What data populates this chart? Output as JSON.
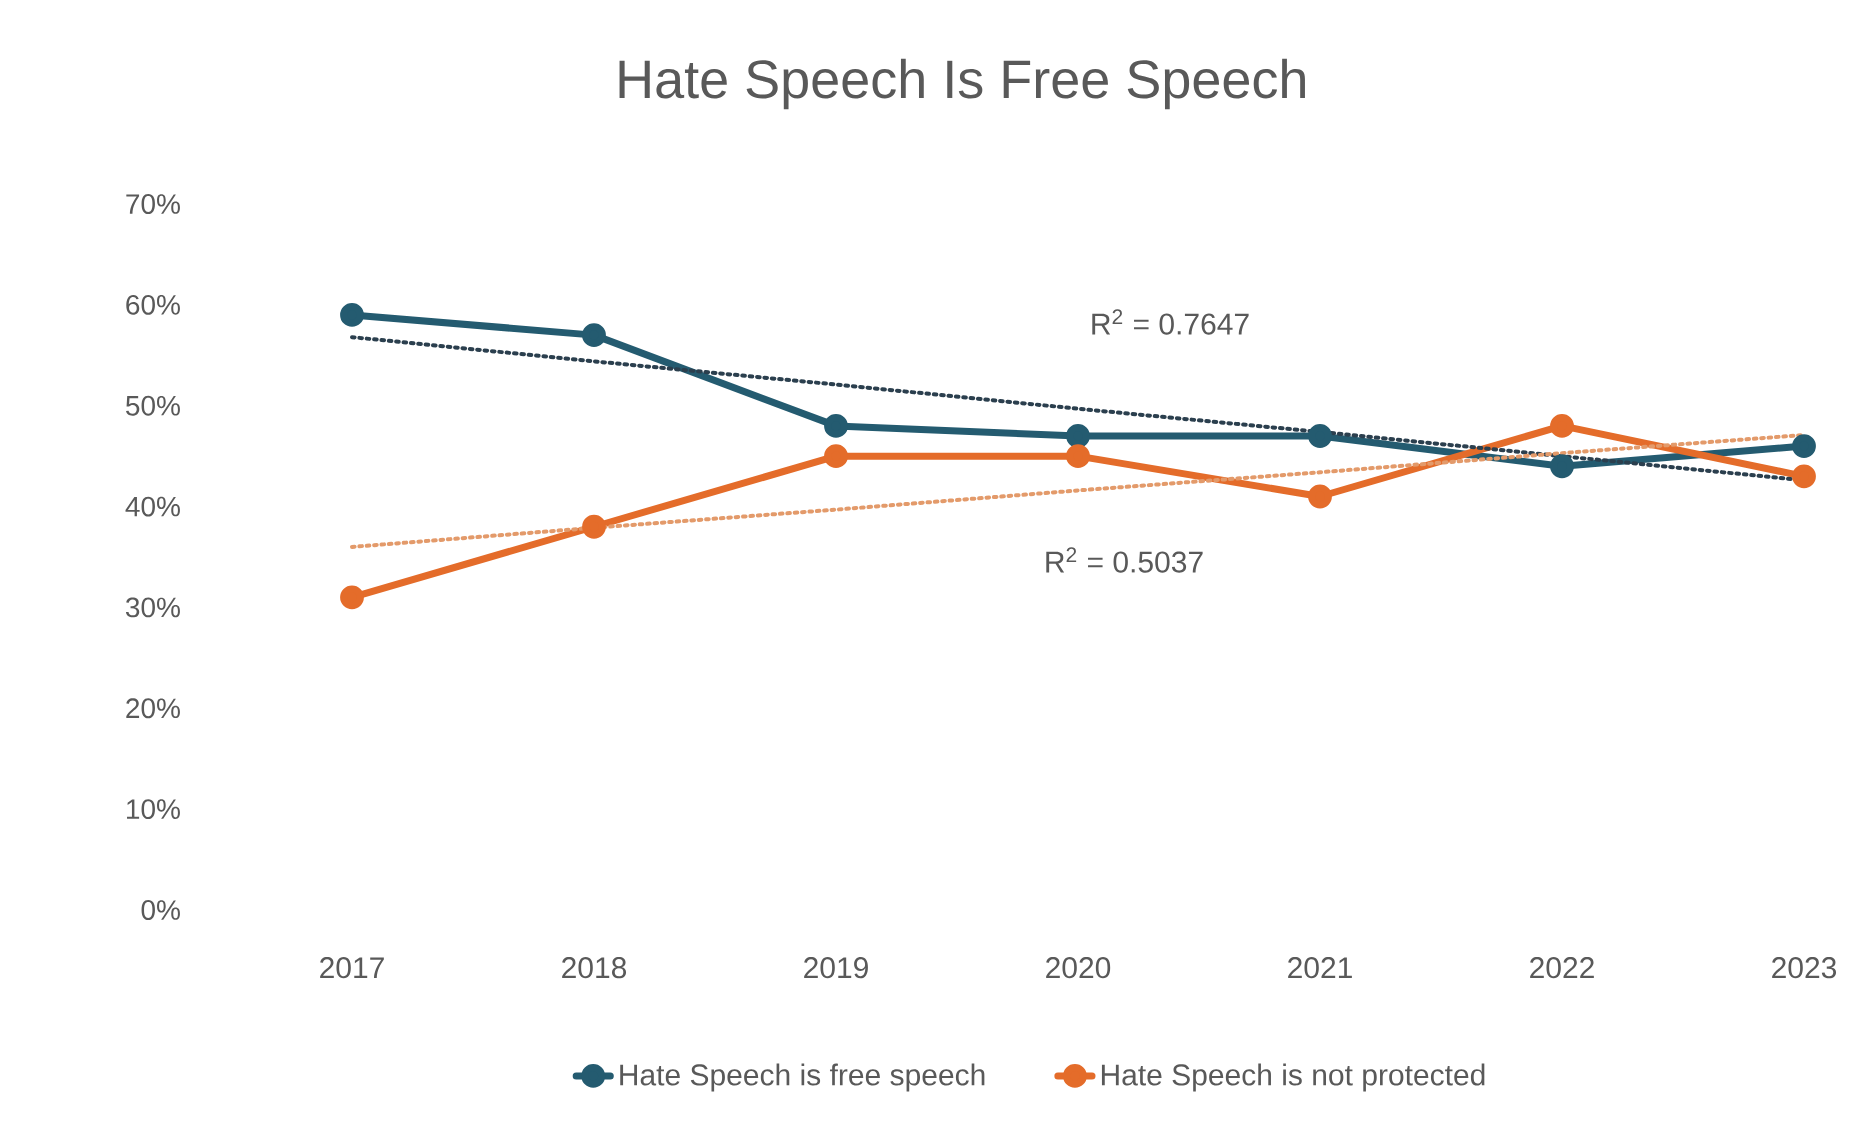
{
  "chart_data": {
    "type": "line",
    "title": "Hate Speech Is Free Speech",
    "x": [
      2017,
      2018,
      2019,
      2020,
      2021,
      2022,
      2023
    ],
    "xlim": [
      2017,
      2023
    ],
    "xticks": [
      2017,
      2018,
      2019,
      2020,
      2021,
      2022,
      2023
    ],
    "ylim": [
      0,
      70
    ],
    "yticks": [
      {
        "value": 0,
        "label": "0%"
      },
      {
        "value": 10,
        "label": "10%"
      },
      {
        "value": 20,
        "label": "20%"
      },
      {
        "value": 30,
        "label": "30%"
      },
      {
        "value": 40,
        "label": "40%"
      },
      {
        "value": 50,
        "label": "50%"
      },
      {
        "value": 60,
        "label": "60%"
      },
      {
        "value": 70,
        "label": "70%"
      }
    ],
    "marker": "circle",
    "legend": "bottom",
    "series": [
      {
        "name": "Hate Speech is free speech",
        "color": "#245b70",
        "values": [
          59,
          57,
          48,
          47,
          47,
          44,
          46
        ]
      },
      {
        "name": "Hate Speech is not protected",
        "color": "#e46c2a",
        "values": [
          31,
          38,
          45,
          45,
          41,
          48,
          43
        ]
      },
      {
        "type": "line",
        "values": [
          56.8,
          54.4,
          52.1,
          49.7,
          47.4,
          45.0,
          42.6
        ],
        "color": "#2b3f4e",
        "line_style": "dotted",
        "marker": "none"
      },
      {
        "type": "line",
        "values": [
          36.0,
          37.9,
          39.7,
          41.6,
          43.4,
          45.3,
          47.1
        ],
        "color": "#e39a6a",
        "line_style": "dotted",
        "marker": "none"
      }
    ],
    "annotations": [
      "R$^{2}$ = 0.7647",
      "R$^{2}$ = 0.5037"
    ]
  }
}
